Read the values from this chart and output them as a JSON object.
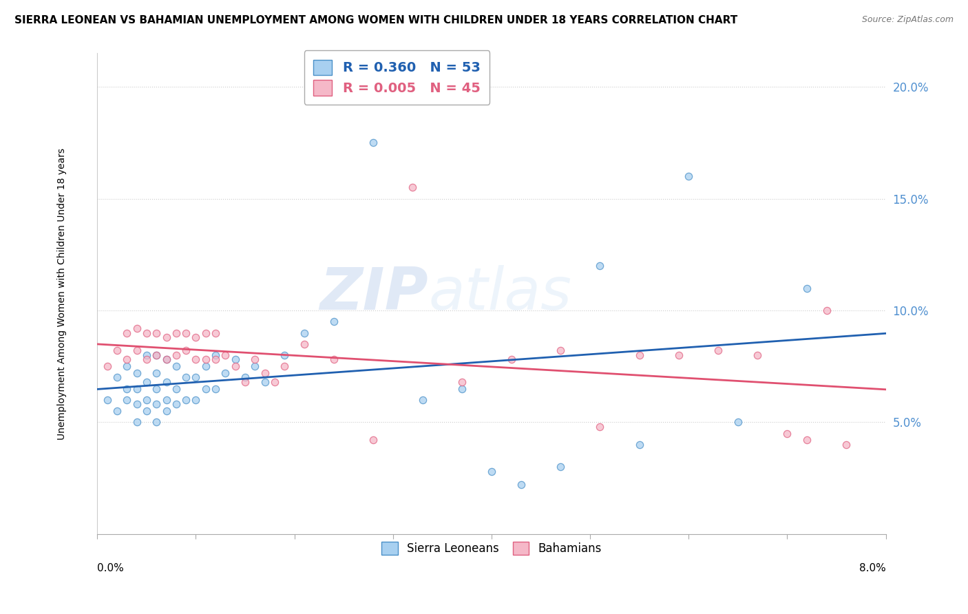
{
  "title": "SIERRA LEONEAN VS BAHAMIAN UNEMPLOYMENT AMONG WOMEN WITH CHILDREN UNDER 18 YEARS CORRELATION CHART",
  "source": "Source: ZipAtlas.com",
  "ylabel": "Unemployment Among Women with Children Under 18 years",
  "xlim": [
    0.0,
    0.08
  ],
  "ylim": [
    0.0,
    0.215
  ],
  "yticks": [
    0.05,
    0.1,
    0.15,
    0.2
  ],
  "ytick_labels": [
    "5.0%",
    "10.0%",
    "15.0%",
    "20.0%"
  ],
  "watermark_zip": "ZIP",
  "watermark_atlas": "atlas",
  "legend_blue_r": 0.36,
  "legend_blue_n": 53,
  "legend_pink_r": 0.005,
  "legend_pink_n": 45,
  "blue_color": "#a8d0f0",
  "pink_color": "#f5b8c8",
  "blue_edge_color": "#4a90c8",
  "pink_edge_color": "#e06080",
  "blue_line_color": "#2060b0",
  "pink_line_color": "#e05070",
  "ytick_color": "#5090d0",
  "background_color": "#ffffff",
  "scatter_alpha": 0.75,
  "scatter_size": 55,
  "blue_scatter_x": [
    0.001,
    0.002,
    0.002,
    0.003,
    0.003,
    0.003,
    0.004,
    0.004,
    0.004,
    0.004,
    0.005,
    0.005,
    0.005,
    0.005,
    0.006,
    0.006,
    0.006,
    0.006,
    0.006,
    0.007,
    0.007,
    0.007,
    0.007,
    0.008,
    0.008,
    0.008,
    0.009,
    0.009,
    0.01,
    0.01,
    0.011,
    0.011,
    0.012,
    0.012,
    0.013,
    0.014,
    0.015,
    0.016,
    0.017,
    0.019,
    0.021,
    0.024,
    0.028,
    0.033,
    0.037,
    0.04,
    0.043,
    0.047,
    0.051,
    0.055,
    0.06,
    0.065,
    0.072
  ],
  "blue_scatter_y": [
    0.06,
    0.055,
    0.07,
    0.06,
    0.065,
    0.075,
    0.05,
    0.058,
    0.065,
    0.072,
    0.055,
    0.06,
    0.068,
    0.08,
    0.05,
    0.058,
    0.065,
    0.072,
    0.08,
    0.055,
    0.06,
    0.068,
    0.078,
    0.058,
    0.065,
    0.075,
    0.06,
    0.07,
    0.06,
    0.07,
    0.065,
    0.075,
    0.065,
    0.08,
    0.072,
    0.078,
    0.07,
    0.075,
    0.068,
    0.08,
    0.09,
    0.095,
    0.175,
    0.06,
    0.065,
    0.028,
    0.022,
    0.03,
    0.12,
    0.04,
    0.16,
    0.05,
    0.11
  ],
  "pink_scatter_x": [
    0.001,
    0.002,
    0.003,
    0.003,
    0.004,
    0.004,
    0.005,
    0.005,
    0.006,
    0.006,
    0.007,
    0.007,
    0.008,
    0.008,
    0.009,
    0.009,
    0.01,
    0.01,
    0.011,
    0.011,
    0.012,
    0.012,
    0.013,
    0.014,
    0.015,
    0.016,
    0.017,
    0.018,
    0.019,
    0.021,
    0.024,
    0.028,
    0.032,
    0.037,
    0.042,
    0.047,
    0.051,
    0.055,
    0.059,
    0.063,
    0.067,
    0.07,
    0.072,
    0.074,
    0.076
  ],
  "pink_scatter_y": [
    0.075,
    0.082,
    0.078,
    0.09,
    0.082,
    0.092,
    0.078,
    0.09,
    0.08,
    0.09,
    0.078,
    0.088,
    0.08,
    0.09,
    0.082,
    0.09,
    0.078,
    0.088,
    0.078,
    0.09,
    0.078,
    0.09,
    0.08,
    0.075,
    0.068,
    0.078,
    0.072,
    0.068,
    0.075,
    0.085,
    0.078,
    0.042,
    0.155,
    0.068,
    0.078,
    0.082,
    0.048,
    0.08,
    0.08,
    0.082,
    0.08,
    0.045,
    0.042,
    0.1,
    0.04
  ]
}
